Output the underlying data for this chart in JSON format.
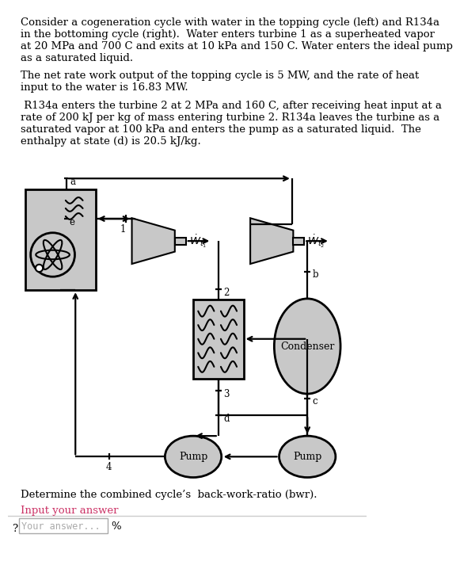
{
  "text_paragraph1": "Consider a cogeneration cycle with water in the topping cycle (left) and R134a\nin the bottoming cycle (right).  Water enters turbine 1 as a superheated vapor\nat 20 MPa and 700 C and exits at 10 kPa and 150 C. Water enters the ideal pump\nas a saturated liquid.",
  "text_paragraph2": "The net rate work output of the topping cycle is 5 MW, and the rate of heat\ninput to the water is 16.83 MW.",
  "text_paragraph3": " R134a enters the turbine 2 at 2 MPa and 160 C, after receiving heat input at a\nrate of 200 kJ per kg of mass entering turbine 2. R134a leaves the turbine as a\nsaturated vapor at 100 kPa and enters the pump as a saturated liquid.  The\nenthalpy at state (d) is 20.5 kJ/kg.",
  "text_question": "Determine the combined cycle’s  back-work-ratio (bwr).",
  "text_input_label": "Input your answer",
  "text_input_placeholder": "Your answer...",
  "text_percent": "%",
  "text_question_mark": "?",
  "bg_color": "#ffffff",
  "text_color": "#000000",
  "input_label_color": "#cc3366",
  "diagram_bg": "#c8c8c8",
  "line_color": "#000000",
  "font_size_body": 9.5,
  "font_size_labels": 8.5,
  "font_size_question": 9.5,
  "font_size_input_label": 9.5
}
